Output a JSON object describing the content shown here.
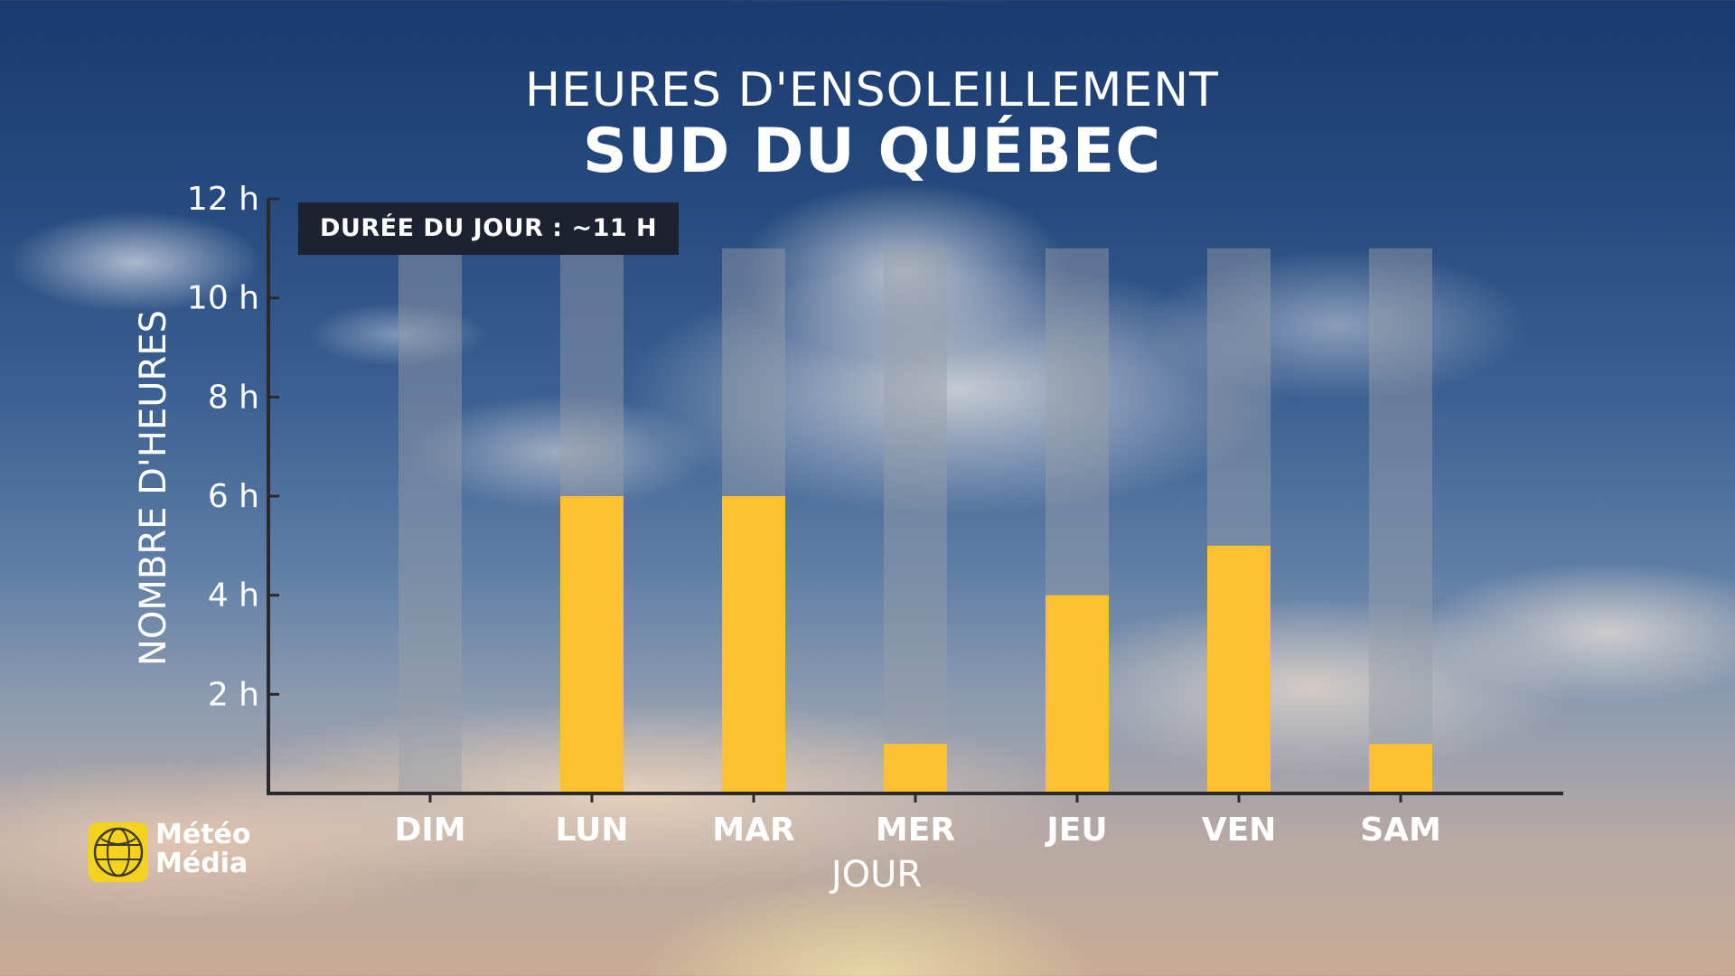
{
  "header": {
    "title": "HEURES D'ENSOLEILLEMENT",
    "subtitle": "SUD DU QUÉBEC"
  },
  "badge": {
    "label": "DURÉE DU JOUR : ~11 H"
  },
  "brand": {
    "line1": "Météo",
    "line2": "Média"
  },
  "colors": {
    "bar": "#fdc12f",
    "daylight_band": "#9aa0a8"
  },
  "chart_data": {
    "type": "bar",
    "title": "HEURES D'ENSOLEILLEMENT",
    "subtitle": "SUD DU QUÉBEC",
    "xlabel": "JOUR",
    "ylabel": "NOMBRE D'HEURES",
    "categories": [
      "DIM",
      "LUN",
      "MAR",
      "MER",
      "JEU",
      "VEN",
      "SAM"
    ],
    "values": [
      0,
      6,
      6,
      1,
      4,
      5,
      1
    ],
    "daylight_hours": 11,
    "ylim": [
      0,
      12
    ],
    "yticks": [
      2,
      4,
      6,
      8,
      10,
      12
    ],
    "ytick_labels": [
      "2 h",
      "4 h",
      "6 h",
      "8 h",
      "10 h",
      "12 h"
    ],
    "grid": false,
    "legend": "none"
  }
}
